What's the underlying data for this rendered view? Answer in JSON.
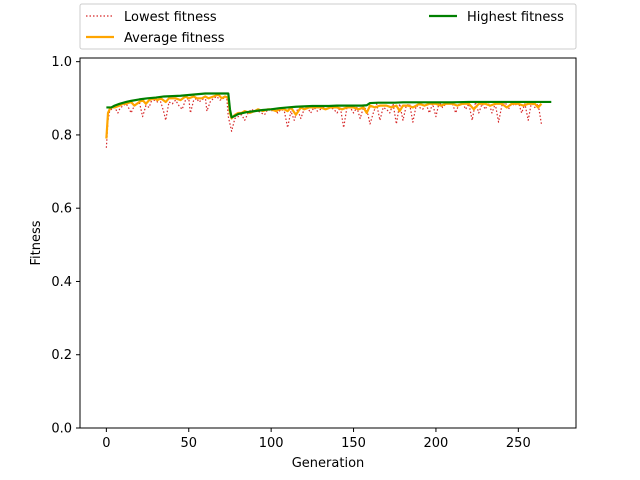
{
  "chart_data": {
    "type": "line",
    "title": "",
    "xlabel": "Generation",
    "ylabel": "Fitness",
    "xlim": [
      -16,
      285
    ],
    "ylim": [
      0.0,
      1.01
    ],
    "xticks": [
      0,
      50,
      100,
      150,
      200,
      250
    ],
    "yticks": [
      0.0,
      0.2,
      0.4,
      0.6,
      0.8,
      1.0
    ],
    "xtick_labels": [
      "0",
      "50",
      "100",
      "150",
      "200",
      "250"
    ],
    "ytick_labels": [
      "0.0",
      "0.2",
      "0.4",
      "0.6",
      "0.8",
      "1.0"
    ],
    "grid": false,
    "legend_placement": "top (above plot, two columns)",
    "series": [
      {
        "name": "Lowest fitness",
        "color": "#d62728",
        "style": "dotted",
        "x": [
          0,
          1,
          2,
          3,
          5,
          7,
          8,
          10,
          12,
          14,
          15,
          17,
          19,
          20,
          22,
          24,
          26,
          27,
          29,
          31,
          33,
          35,
          36,
          38,
          40,
          42,
          44,
          46,
          48,
          50,
          51,
          53,
          55,
          56,
          58,
          60,
          61,
          63,
          65,
          67,
          69,
          71,
          73,
          74,
          76,
          78,
          80,
          82,
          84,
          86,
          88,
          90,
          92,
          94,
          96,
          98,
          100,
          102,
          104,
          106,
          108,
          110,
          112,
          114,
          116,
          118,
          120,
          122,
          124,
          126,
          128,
          130,
          132,
          134,
          136,
          138,
          140,
          142,
          144,
          146,
          148,
          150,
          152,
          154,
          156,
          158,
          160,
          162,
          164,
          166,
          168,
          170,
          172,
          174,
          176,
          178,
          180,
          182,
          184,
          186,
          188,
          190,
          192,
          194,
          196,
          198,
          200,
          202,
          204,
          206,
          208,
          210,
          212,
          214,
          216,
          218,
          220,
          222,
          224,
          226,
          228,
          230,
          232,
          234,
          236,
          238,
          240,
          242,
          244,
          246,
          248,
          250,
          252,
          254,
          256,
          258,
          260,
          262,
          264
        ],
        "y": [
          0.765,
          0.84,
          0.865,
          0.87,
          0.875,
          0.86,
          0.87,
          0.88,
          0.885,
          0.87,
          0.86,
          0.88,
          0.885,
          0.89,
          0.85,
          0.88,
          0.875,
          0.89,
          0.895,
          0.89,
          0.89,
          0.86,
          0.84,
          0.89,
          0.885,
          0.895,
          0.88,
          0.87,
          0.895,
          0.9,
          0.86,
          0.895,
          0.9,
          0.89,
          0.895,
          0.905,
          0.865,
          0.89,
          0.9,
          0.905,
          0.895,
          0.9,
          0.905,
          0.85,
          0.81,
          0.845,
          0.85,
          0.855,
          0.84,
          0.86,
          0.87,
          0.865,
          0.865,
          0.86,
          0.855,
          0.87,
          0.865,
          0.87,
          0.86,
          0.87,
          0.865,
          0.82,
          0.865,
          0.84,
          0.87,
          0.845,
          0.87,
          0.875,
          0.86,
          0.875,
          0.865,
          0.87,
          0.875,
          0.87,
          0.875,
          0.87,
          0.86,
          0.875,
          0.82,
          0.875,
          0.875,
          0.86,
          0.875,
          0.845,
          0.875,
          0.87,
          0.83,
          0.86,
          0.885,
          0.84,
          0.875,
          0.87,
          0.86,
          0.885,
          0.83,
          0.885,
          0.84,
          0.88,
          0.885,
          0.835,
          0.88,
          0.875,
          0.87,
          0.885,
          0.86,
          0.885,
          0.85,
          0.89,
          0.875,
          0.885,
          0.89,
          0.885,
          0.86,
          0.885,
          0.89,
          0.87,
          0.885,
          0.84,
          0.89,
          0.86,
          0.885,
          0.87,
          0.89,
          0.86,
          0.885,
          0.835,
          0.88,
          0.89,
          0.87,
          0.885,
          0.88,
          0.89,
          0.86,
          0.885,
          0.84,
          0.89,
          0.875,
          0.885,
          0.83
        ]
      },
      {
        "name": "Average fitness",
        "color": "#ffa500",
        "style": "solid",
        "x": [
          0,
          1,
          2,
          3,
          5,
          8,
          10,
          12,
          15,
          17,
          20,
          22,
          24,
          26,
          29,
          31,
          33,
          36,
          38,
          40,
          42,
          45,
          48,
          50,
          53,
          55,
          58,
          60,
          62,
          65,
          68,
          70,
          72,
          74,
          75,
          76,
          78,
          80,
          82,
          84,
          87,
          90,
          92,
          95,
          98,
          100,
          103,
          105,
          108,
          110,
          112,
          115,
          118,
          120,
          123,
          126,
          130,
          133,
          136,
          140,
          143,
          146,
          150,
          153,
          156,
          158,
          160,
          163,
          166,
          170,
          173,
          176,
          178,
          180,
          183,
          186,
          190,
          193,
          196,
          200,
          203,
          206,
          210,
          213,
          216,
          220,
          223,
          226,
          230,
          233,
          236,
          240,
          243,
          246,
          250,
          253,
          256,
          260,
          262,
          264
        ],
        "y": [
          0.79,
          0.86,
          0.87,
          0.875,
          0.875,
          0.88,
          0.885,
          0.885,
          0.89,
          0.88,
          0.89,
          0.895,
          0.885,
          0.895,
          0.9,
          0.895,
          0.9,
          0.89,
          0.9,
          0.9,
          0.9,
          0.895,
          0.905,
          0.9,
          0.905,
          0.9,
          0.9,
          0.905,
          0.9,
          0.905,
          0.91,
          0.9,
          0.905,
          0.9,
          0.86,
          0.845,
          0.855,
          0.86,
          0.86,
          0.865,
          0.86,
          0.865,
          0.87,
          0.865,
          0.87,
          0.87,
          0.865,
          0.87,
          0.87,
          0.865,
          0.875,
          0.855,
          0.875,
          0.87,
          0.875,
          0.875,
          0.875,
          0.87,
          0.875,
          0.875,
          0.87,
          0.875,
          0.875,
          0.87,
          0.875,
          0.86,
          0.88,
          0.875,
          0.88,
          0.88,
          0.875,
          0.88,
          0.865,
          0.88,
          0.88,
          0.875,
          0.885,
          0.88,
          0.885,
          0.885,
          0.88,
          0.885,
          0.885,
          0.88,
          0.885,
          0.885,
          0.87,
          0.885,
          0.885,
          0.88,
          0.885,
          0.885,
          0.875,
          0.885,
          0.885,
          0.88,
          0.885,
          0.885,
          0.875,
          0.885
        ]
      },
      {
        "name": "Highest fitness",
        "color": "#008000",
        "style": "solid",
        "x": [
          0,
          3,
          5,
          8,
          12,
          15,
          20,
          25,
          30,
          35,
          40,
          45,
          50,
          55,
          60,
          65,
          70,
          74,
          75,
          76,
          78,
          80,
          85,
          90,
          95,
          100,
          105,
          110,
          115,
          120,
          125,
          130,
          135,
          140,
          145,
          150,
          155,
          158,
          160,
          165,
          170,
          175,
          180,
          190,
          200,
          210,
          220,
          230,
          240,
          250,
          260,
          270
        ],
        "y": [
          0.875,
          0.875,
          0.88,
          0.885,
          0.89,
          0.893,
          0.897,
          0.9,
          0.902,
          0.905,
          0.906,
          0.907,
          0.909,
          0.911,
          0.913,
          0.913,
          0.913,
          0.913,
          0.87,
          0.848,
          0.852,
          0.857,
          0.862,
          0.865,
          0.868,
          0.87,
          0.873,
          0.875,
          0.877,
          0.878,
          0.879,
          0.879,
          0.879,
          0.88,
          0.88,
          0.88,
          0.88,
          0.881,
          0.887,
          0.888,
          0.888,
          0.888,
          0.889,
          0.889,
          0.889,
          0.889,
          0.89,
          0.89,
          0.89,
          0.89,
          0.89,
          0.89
        ]
      }
    ]
  }
}
